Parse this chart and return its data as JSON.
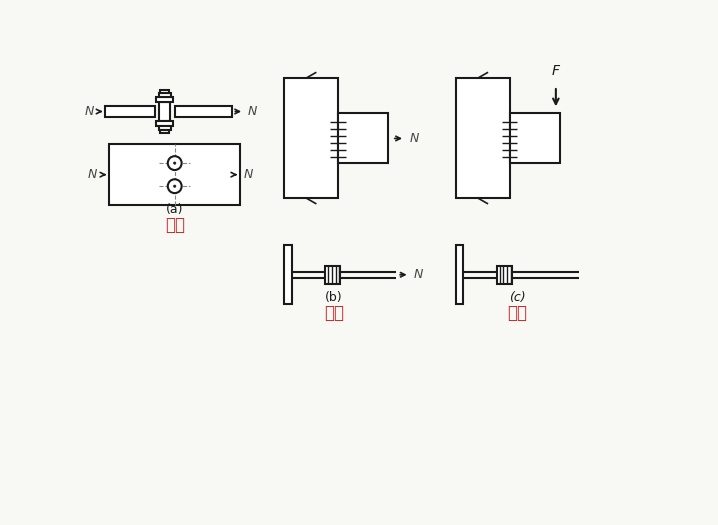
{
  "bg_color": "#f8f8f5",
  "line_color": "#1a1a1a",
  "label_color": "#cc2222",
  "text_color": "#1a1a1a",
  "fig_width": 7.18,
  "fig_height": 5.25,
  "labels": {
    "a_label": "(a)",
    "a_chinese": "受剪",
    "b_label": "(b)",
    "b_chinese": "受拉",
    "c_label": "(c)",
    "c_chinese": "拉剪"
  }
}
